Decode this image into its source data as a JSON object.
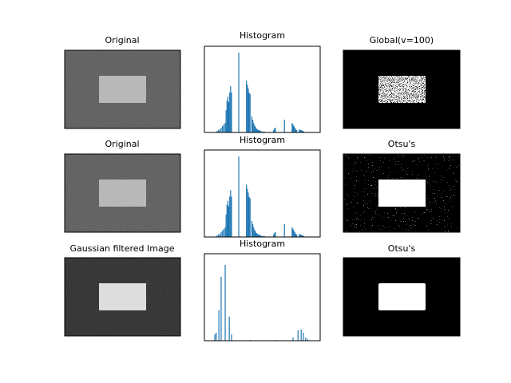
{
  "images": [
    {
      "title": "Original"
    },
    {
      "title": "Global(v=100)"
    },
    {
      "title": "Original"
    },
    {
      "title": "Otsu's"
    },
    {
      "title": "Gaussian filtered Image"
    },
    {
      "title": "Otsu's"
    }
  ],
  "chart_data": [
    {
      "type": "histogram",
      "title": "Histogram",
      "color": "#1f77b4",
      "xlim": [
        0,
        256
      ],
      "ylim": [
        0,
        108
      ],
      "x": [
        28,
        31,
        34,
        37,
        40,
        43,
        46,
        48,
        50,
        52,
        54,
        56,
        58,
        60,
        76,
        93,
        95,
        97,
        99,
        101,
        105,
        107,
        109,
        111,
        113,
        115,
        117,
        119,
        121,
        123,
        125,
        127,
        129,
        131,
        133,
        153,
        155,
        157,
        177,
        194,
        196,
        198,
        200,
        202,
        204,
        210,
        212,
        214,
        216,
        218,
        220
      ],
      "values": [
        2,
        3,
        4,
        6,
        8,
        10,
        12,
        28,
        40,
        45,
        38,
        50,
        58,
        50,
        100,
        65,
        60,
        55,
        50,
        48,
        20,
        16,
        12,
        9,
        7,
        5,
        4,
        3,
        3,
        2,
        2,
        1,
        1,
        1,
        1,
        3,
        5,
        6,
        16,
        12,
        10,
        8,
        6,
        4,
        3,
        4,
        3,
        3,
        2,
        2,
        1
      ]
    },
    {
      "type": "histogram",
      "title": "Histogram",
      "color": "#1f77b4",
      "xlim": [
        0,
        256
      ],
      "ylim": [
        0,
        108
      ],
      "x": [
        28,
        31,
        34,
        37,
        40,
        43,
        46,
        48,
        50,
        52,
        54,
        56,
        58,
        60,
        76,
        93,
        95,
        97,
        99,
        101,
        105,
        107,
        109,
        111,
        113,
        115,
        117,
        119,
        121,
        123,
        125,
        127,
        129,
        131,
        133,
        153,
        155,
        157,
        177,
        194,
        196,
        198,
        200,
        202,
        204,
        210,
        212,
        214,
        216,
        218,
        220
      ],
      "values": [
        2,
        3,
        4,
        6,
        8,
        10,
        12,
        28,
        40,
        45,
        38,
        50,
        58,
        50,
        100,
        65,
        60,
        55,
        50,
        48,
        20,
        16,
        12,
        9,
        7,
        5,
        4,
        3,
        3,
        2,
        2,
        1,
        1,
        1,
        1,
        3,
        5,
        6,
        16,
        12,
        10,
        8,
        6,
        4,
        3,
        4,
        3,
        3,
        2,
        2,
        1
      ]
    },
    {
      "type": "histogram",
      "title": "Histogram",
      "color": "#1f77b4",
      "xlim": [
        0,
        256
      ],
      "ylim": [
        0,
        109
      ],
      "x": [
        23,
        26,
        32,
        37,
        46,
        55,
        60,
        101,
        159,
        196,
        207,
        214,
        219,
        224,
        228
      ],
      "values": [
        8,
        10,
        38,
        80,
        95,
        30,
        8,
        1,
        1,
        4,
        13,
        14,
        10,
        4,
        2
      ]
    }
  ]
}
